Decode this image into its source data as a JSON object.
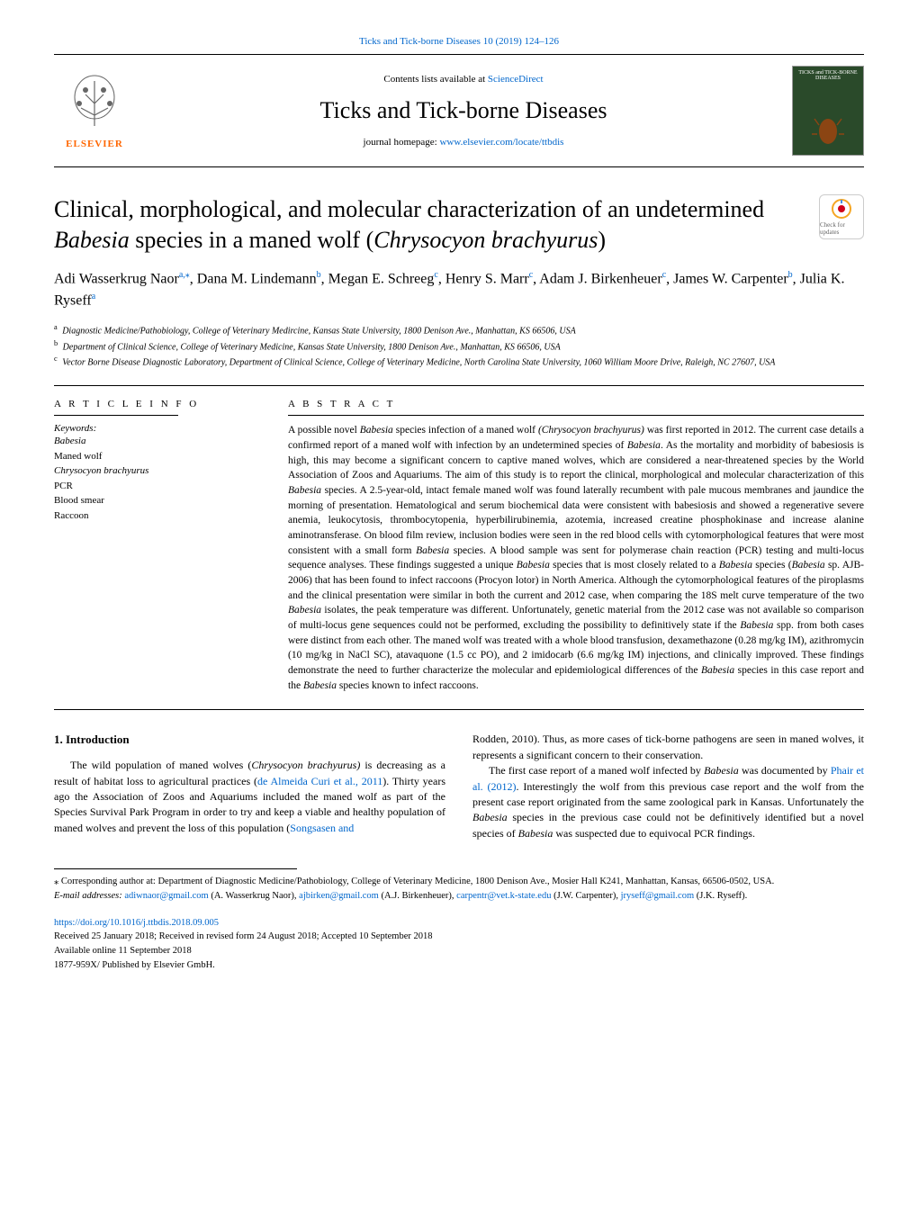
{
  "header": {
    "citation": "Ticks and Tick-borne Diseases 10 (2019) 124–126",
    "contents_prefix": "Contents lists available at ",
    "contents_link": "ScienceDirect",
    "journal_title": "Ticks and Tick-borne Diseases",
    "homepage_prefix": "journal homepage: ",
    "homepage_link": "www.elsevier.com/locate/ttbdis",
    "publisher": "ELSEVIER",
    "cover_text": "TICKS and TICK-BORNE DISEASES",
    "updates_label": "Check for updates"
  },
  "article": {
    "title_part1": "Clinical, morphological, and molecular characterization of an undetermined ",
    "title_italic1": "Babesia",
    "title_part2": " species in a maned wolf (",
    "title_italic2": "Chrysocyon brachyurus",
    "title_part3": ")",
    "authors_html": "Adi Wasserkrug Naor<sup>a,</sup><sup>⁎</sup>, Dana M. Lindemann<sup>b</sup>, Megan E. Schreeg<sup>c</sup>, Henry S. Marr<sup>c</sup>, Adam J. Birkenheuer<sup>c</sup>, James W. Carpenter<sup>b</sup>, Julia K. Ryseff<sup>a</sup>",
    "affiliations": [
      {
        "sup": "a",
        "text": "Diagnostic Medicine/Pathobiology, College of Veterinary Medircine, Kansas State University, 1800 Denison Ave., Manhattan, KS 66506, USA"
      },
      {
        "sup": "b",
        "text": "Department of Clinical Science, College of Veterinary Medicine, Kansas State University, 1800 Denison Ave., Manhattan, KS 66506, USA"
      },
      {
        "sup": "c",
        "text": "Vector Borne Disease Diagnostic Laboratory, Department of Clinical Science, College of Veterinary Medicine, North Carolina State University, 1060 William Moore Drive, Raleigh, NC 27607, USA"
      }
    ]
  },
  "info": {
    "heading": "A R T I C L E  I N F O",
    "keywords_label": "Keywords:",
    "keywords": [
      "Babesia",
      "Maned wolf",
      "Chrysocyon brachyurus",
      "PCR",
      "Blood smear",
      "Raccoon"
    ],
    "keywords_italic": [
      true,
      false,
      true,
      false,
      false,
      false
    ]
  },
  "abstract": {
    "heading": "A B S T R A C T",
    "text": "A possible novel <em>Babesia</em> species infection of a maned wolf <em>(Chrysocyon brachyurus)</em> was first reported in 2012. The current case details a confirmed report of a maned wolf with infection by an undetermined species of <em>Babesia</em>. As the mortality and morbidity of babesiosis is high, this may become a significant concern to captive maned wolves, which are considered a near-threatened species by the World Association of Zoos and Aquariums. The aim of this study is to report the clinical, morphological and molecular characterization of this <em>Babesia</em> species. A 2.5-year-old, intact female maned wolf was found laterally recumbent with pale mucous membranes and jaundice the morning of presentation. Hematological and serum biochemical data were consistent with babesiosis and showed a regenerative severe anemia, leukocytosis, thrombocytopenia, hyperbilirubinemia, azotemia, increased creatine phosphokinase and increase alanine aminotransferase. On blood film review, inclusion bodies were seen in the red blood cells with cytomorphological features that were most consistent with a small form <em>Babesia</em> species. A blood sample was sent for polymerase chain reaction (PCR) testing and multi-locus sequence analyses. These findings suggested a unique <em>Babesia</em> species that is most closely related to a <em>Babesia</em> species (<em>Babesia</em> sp. AJB-2006) that has been found to infect raccoons (Procyon lotor) in North America. Although the cytomorphological features of the piroplasms and the clinical presentation were similar in both the current and 2012 case, when comparing the 18S melt curve temperature of the two <em>Babesia</em> isolates, the peak temperature was different. Unfortunately, genetic material from the 2012 case was not available so comparison of multi-locus gene sequences could not be performed, excluding the possibility to definitively state if the <em>Babesia</em> spp. from both cases were distinct from each other. The maned wolf was treated with a whole blood transfusion, dexamethazone (0.28 mg/kg IM), azithromycin (10 mg/kg in NaCl SC), atavaquone (1.5 cc PO), and 2 imidocarb (6.6 mg/kg IM) injections, and clinically improved. These findings demonstrate the need to further characterize the molecular and epidemiological differences of the <em>Babesia</em> species in this case report and the <em>Babesia</em> species known to infect raccoons."
  },
  "body": {
    "section_number": "1.",
    "section_title": "Introduction",
    "para1": "The wild population of maned wolves (<em>Chrysocyon brachyurus)</em> is decreasing as a result of habitat loss to agricultural practices (<a>de Almeida Curi et al., 2011</a>). Thirty years ago the Association of Zoos and Aquariums included the maned wolf as part of the Species Survival Park Program in order to try and keep a viable and healthy population of maned wolves and prevent the loss of this population (<a>Songsasen and",
    "para2": "Rodden, 2010</a>). Thus, as more cases of tick-borne pathogens are seen in maned wolves, it represents a significant concern to their conservation.",
    "para3": "The first case report of a maned wolf infected by <em>Babesia</em> was documented by <a>Phair et al. (2012)</a>. Interestingly the wolf from this previous case report and the wolf from the present case report originated from the same zoological park in Kansas. Unfortunately the <em>Babesia</em> species in the previous case could not be definitively identified but a novel species of <em>Babesia</em> was suspected due to equivocal PCR findings."
  },
  "footer": {
    "corresponding": "⁎ Corresponding author at: Department of Diagnostic Medicine/Pathobiology, College of Veterinary Medicine, 1800 Denison Ave., Mosier Hall K241, Manhattan, Kansas, 66506-0502, USA.",
    "email_label": "E-mail addresses: ",
    "emails": [
      {
        "addr": "adiwnaor@gmail.com",
        "name": "(A. Wasserkrug Naor)"
      },
      {
        "addr": "ajbirken@gmail.com",
        "name": "(A.J. Birkenheuer)"
      },
      {
        "addr": "carpentr@vet.k-state.edu",
        "name": "(J.W. Carpenter)"
      },
      {
        "addr": "jryseff@gmail.com",
        "name": "(J.K. Ryseff)."
      }
    ],
    "doi": "https://doi.org/10.1016/j.ttbdis.2018.09.005",
    "received": "Received 25 January 2018; Received in revised form 24 August 2018; Accepted 10 September 2018",
    "available": "Available online 11 September 2018",
    "issn": "1877-959X/ Published by Elsevier GmbH."
  },
  "colors": {
    "link": "#0066cc",
    "elsevier_orange": "#ff6600",
    "cover_bg": "#2a4a2a"
  }
}
